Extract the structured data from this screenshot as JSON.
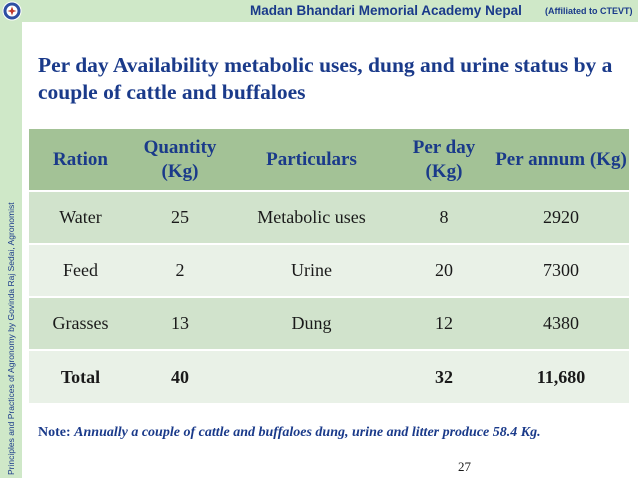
{
  "header": {
    "title": "Madan Bhandari Memorial Academy Nepal",
    "affiliation": "(Affiliated to CTEVT)"
  },
  "sidebar": {
    "text": "Principles and Practices of Agronomy by Govinda Raj Sedai, Agronomist"
  },
  "slide": {
    "title": "Per day Availability metabolic uses, dung and urine status by a couple of cattle and buffaloes"
  },
  "table": {
    "headers": [
      "Ration",
      "Quantity (Kg)",
      "Particulars",
      "Per day (Kg)",
      "Per annum (Kg)"
    ],
    "rows": [
      [
        "Water",
        "25",
        "Metabolic uses",
        "8",
        "2920"
      ],
      [
        "Feed",
        "2",
        "Urine",
        "20",
        "7300"
      ],
      [
        "Grasses",
        "13",
        "Dung",
        "12",
        "4380"
      ],
      [
        "Total",
        "40",
        "",
        "32",
        "11,680"
      ]
    ]
  },
  "note": {
    "label": "Note:",
    "text": "Annually a couple of cattle and buffaloes  dung, urine and litter produce 58.4 Kg."
  },
  "page_number": "27",
  "colors": {
    "accent": "#1a3a8a",
    "band": "#cfe8c8",
    "table_header": "#a3c296",
    "row_dark": "#d1e3cc",
    "row_light": "#e9f1e7"
  }
}
